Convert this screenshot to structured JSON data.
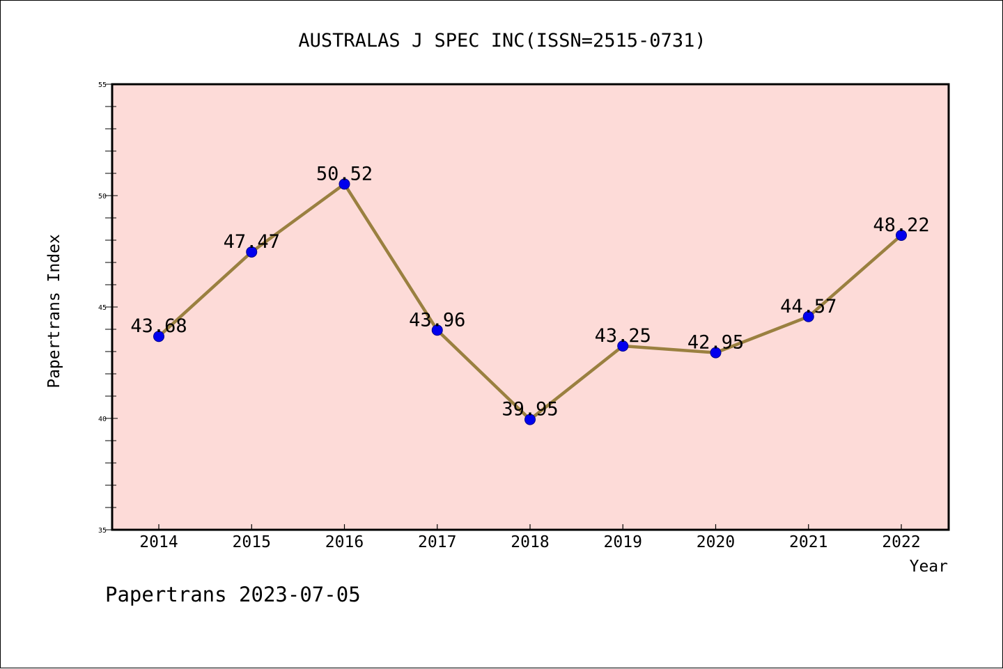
{
  "chart_data": {
    "type": "line",
    "title": "AUSTRALAS J SPEC INC(ISSN=2515-0731)",
    "xlabel": "Year",
    "ylabel": "Papertrans Index",
    "footer": "Papertrans 2023-07-05",
    "categories": [
      "2014",
      "2015",
      "2016",
      "2017",
      "2018",
      "2019",
      "2020",
      "2021",
      "2022"
    ],
    "values": [
      43.68,
      47.47,
      50.52,
      43.96,
      39.95,
      43.25,
      42.95,
      44.57,
      48.22
    ],
    "value_labels": [
      "43.68",
      "47.47",
      "50.52",
      "43.96",
      "39.95",
      "43.25",
      "42.95",
      "44.57",
      "48.22"
    ],
    "ylim": [
      35,
      55
    ],
    "y_major_ticks": [
      "35",
      "40",
      "45",
      "50",
      "55"
    ],
    "y_minor_step": 1,
    "grid": false,
    "colors": {
      "plot_background": "#fddbd8",
      "line": "#9a8040",
      "marker": "#0000ee",
      "marker_edge": "#00008b"
    }
  }
}
